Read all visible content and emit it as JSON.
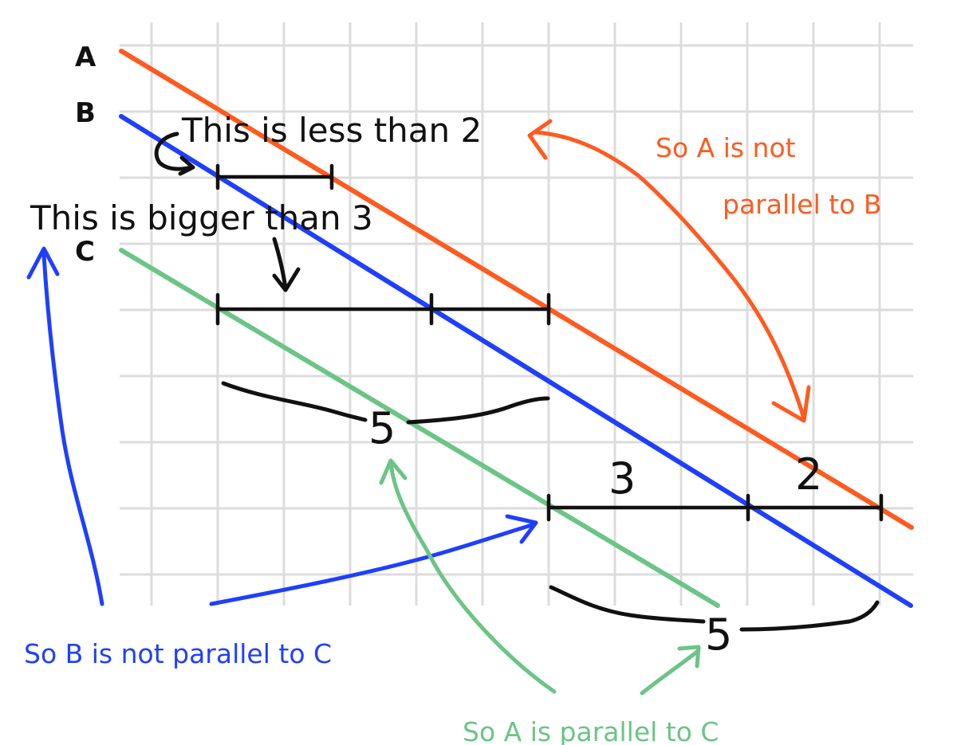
{
  "lines": {
    "a": {
      "label": "A",
      "color": "#ff5a1f"
    },
    "b": {
      "label": "B",
      "color": "#1f3fff"
    },
    "c": {
      "label": "C",
      "color": "#6cc486"
    }
  },
  "notes": {
    "less_than_2": "This is less than 2",
    "bigger_than_3": "This is bigger than 3",
    "a_not_parallel_b_line1": "So A is not",
    "a_not_parallel_b_line2": "parallel to B",
    "b_not_parallel_c": "So B is not parallel to C",
    "a_parallel_c": "So A is parallel to C"
  },
  "measurements": {
    "upper_span": "5",
    "lower_span": "5",
    "lower_left_segment": "3",
    "lower_right_segment": "2"
  }
}
